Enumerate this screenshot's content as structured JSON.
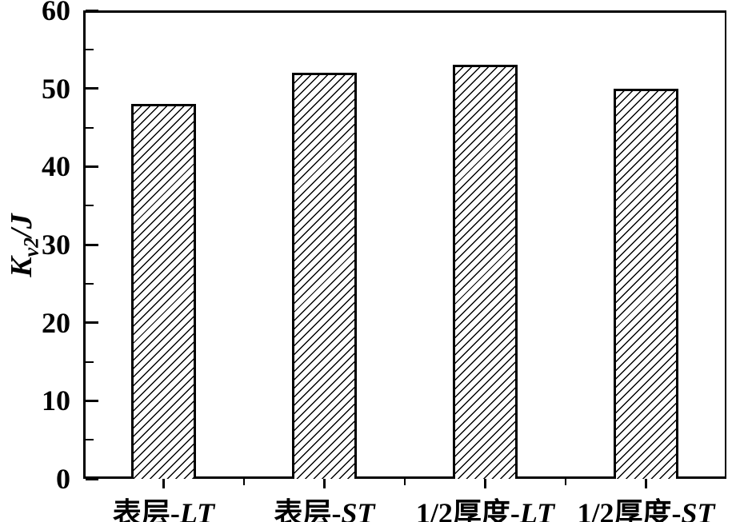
{
  "figure": {
    "background_color": "#ffffff",
    "line_color": "#000000"
  },
  "chart_data": {
    "type": "bar",
    "categories": [
      "表层-LT",
      "表层-ST",
      "1/2厚度-LT",
      "1/2厚度-ST"
    ],
    "category_prefixes": [
      "表层-",
      "表层-",
      "1/2厚度-",
      "1/2厚度-"
    ],
    "category_suffixes": [
      "LT",
      "ST",
      "LT",
      "ST"
    ],
    "values": [
      48,
      52,
      53,
      50
    ],
    "xlabel": "",
    "ylabel": "Kv2/J",
    "ylabel_parts": {
      "symbol": "K",
      "subscript": "v2",
      "unit": "/J"
    },
    "ylim": [
      0,
      60
    ],
    "y_major_ticks": [
      0,
      10,
      20,
      30,
      40,
      50,
      60
    ],
    "y_major_tick_labels": [
      "0",
      "10",
      "20",
      "30",
      "40",
      "50",
      "60"
    ],
    "y_minor_tick_step": 5,
    "grid": false,
    "legend_position": "none",
    "bar_fill": "#ffffff",
    "bar_hatch": "forward-diagonal",
    "bar_edge_color": "#000000"
  }
}
